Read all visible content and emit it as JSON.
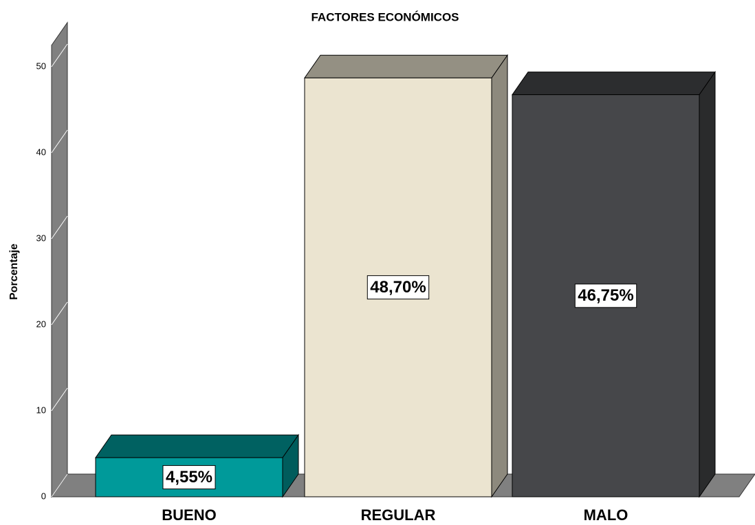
{
  "chart_data": {
    "type": "bar3d",
    "title": "FACTORES ECONÓMICOS",
    "y_label": "Porcentaje",
    "categories": [
      "BUENO",
      "REGULAR",
      "MALO"
    ],
    "values": [
      4.55,
      48.7,
      46.75
    ],
    "value_labels": [
      "4,55%",
      "48,70%",
      "46,75%"
    ],
    "colors": [
      "#009a9a",
      "#ebe4d0",
      "#46474a"
    ],
    "ylim": [
      0,
      52.5
    ],
    "yticks": [
      0,
      10,
      20,
      30,
      40,
      50
    ],
    "grid": true
  }
}
